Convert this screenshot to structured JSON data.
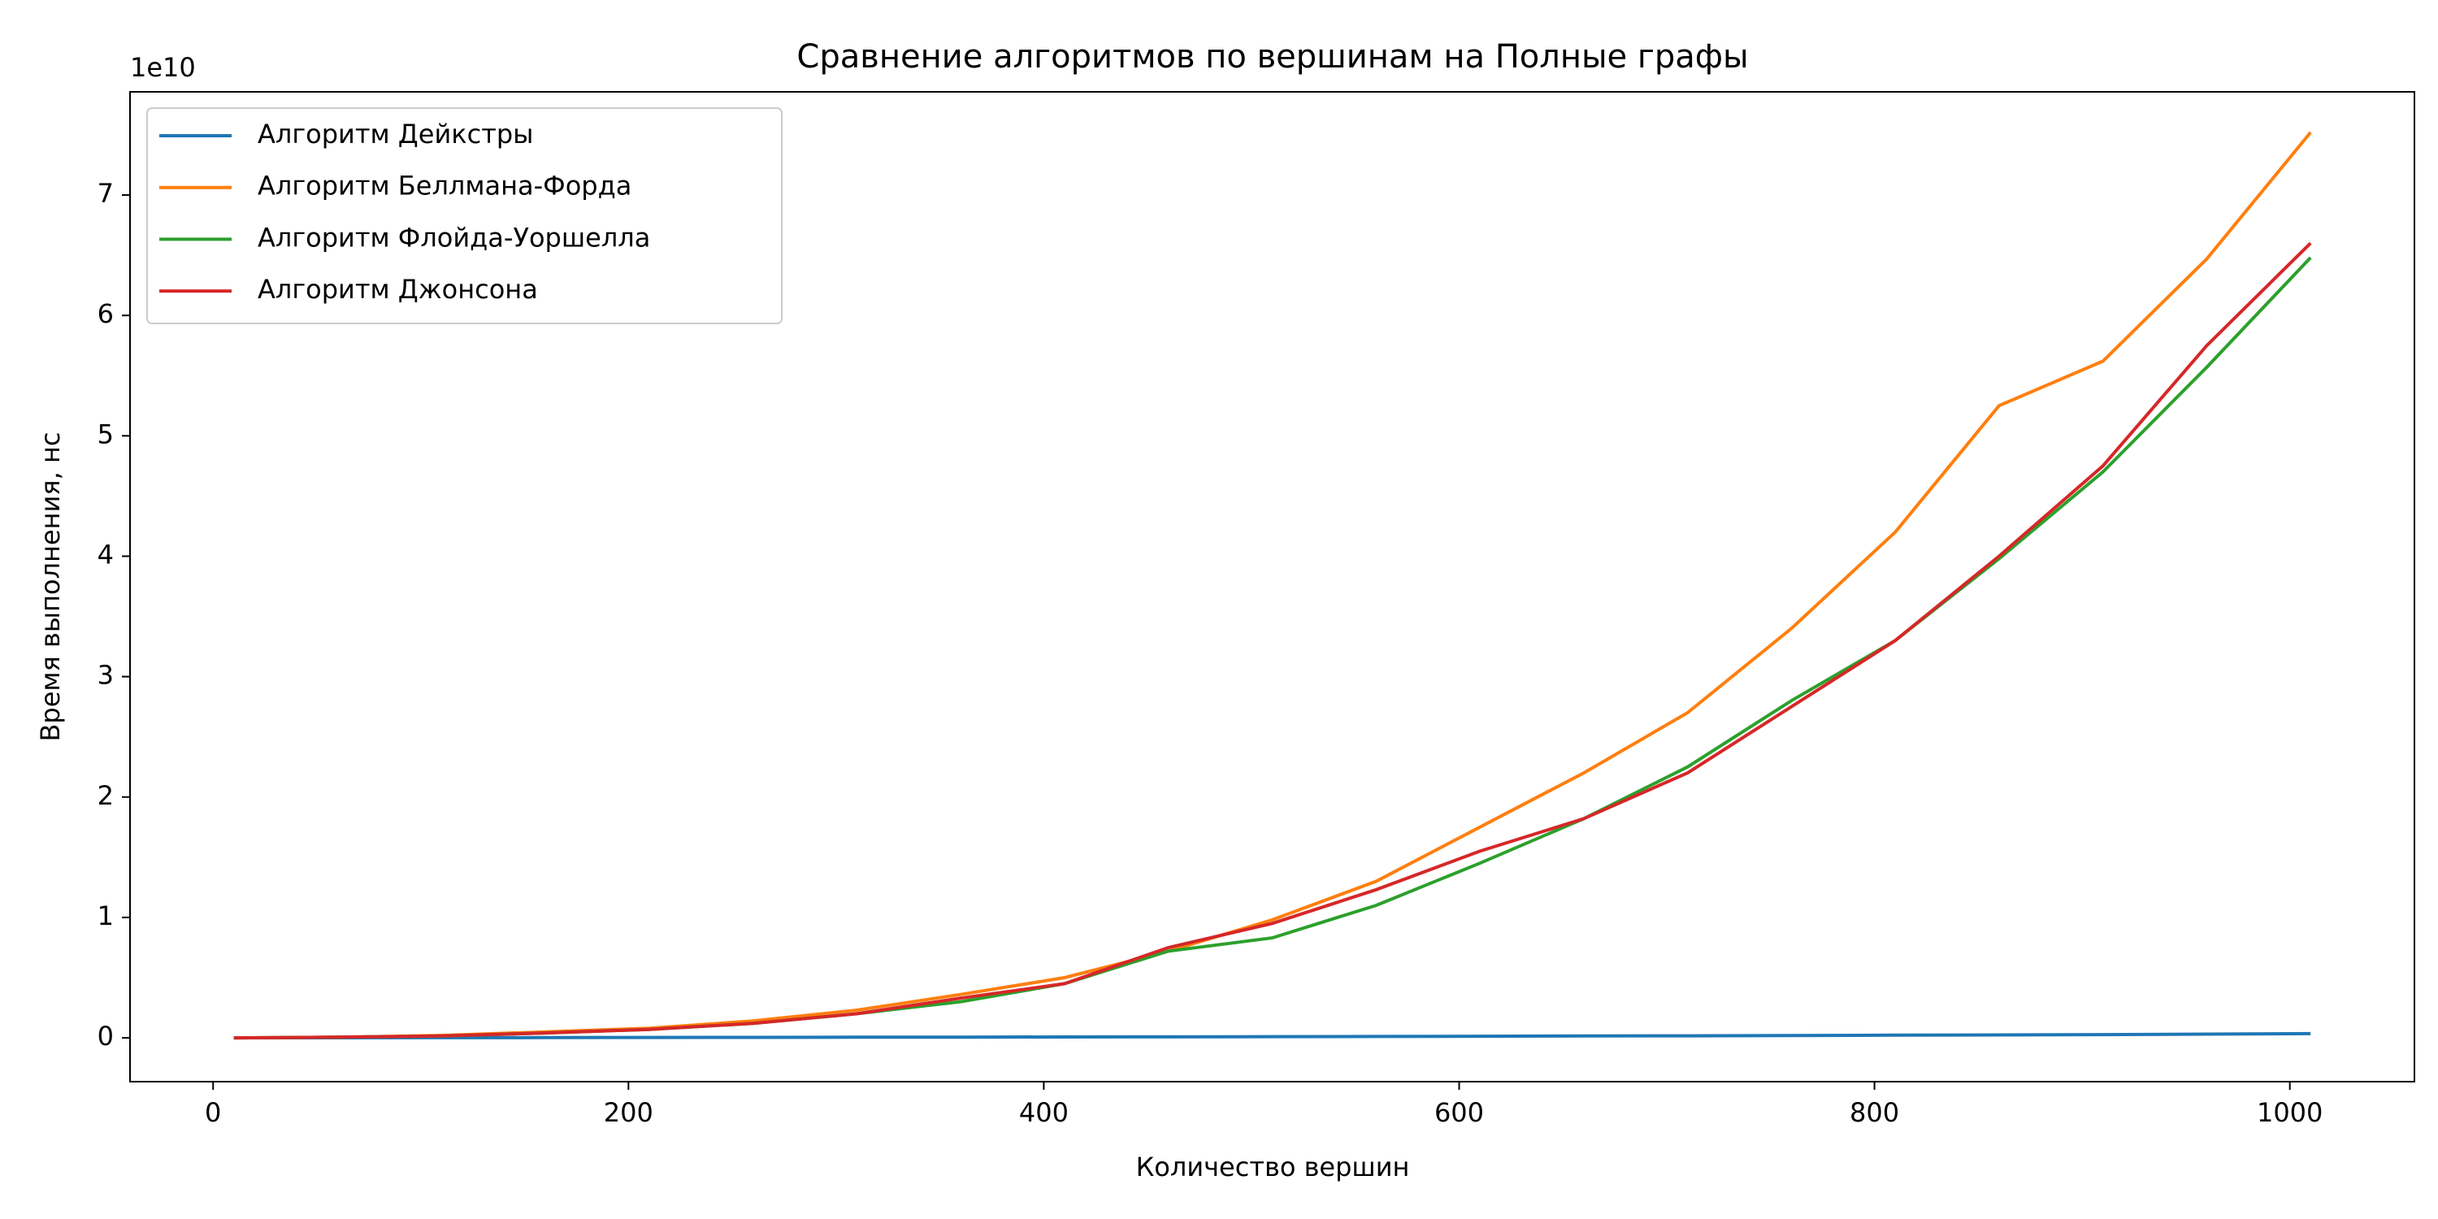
{
  "chart_data": {
    "type": "line",
    "title": "Сравнение алгоритмов по вершинам на Полные графы",
    "x_label": "Количество вершин",
    "y_label": "Время выполнения, нс",
    "offset_text": "1e10",
    "x": [
      10,
      60,
      110,
      160,
      210,
      260,
      310,
      360,
      410,
      460,
      510,
      560,
      610,
      660,
      710,
      760,
      810,
      860,
      910,
      960,
      1010
    ],
    "series": [
      {
        "name": "Алгоритм Дейкстры",
        "color": "#1f77b4",
        "values": [
          0,
          0.0005,
          0.001,
          0.002,
          0.003,
          0.004,
          0.005,
          0.006,
          0.007,
          0.008,
          0.01,
          0.011,
          0.013,
          0.015,
          0.017,
          0.019,
          0.022,
          0.024,
          0.027,
          0.031,
          0.035
        ]
      },
      {
        "name": "Алгоритм Беллмана-Форда",
        "color": "#ff7f0e",
        "values": [
          0,
          0.005,
          0.02,
          0.05,
          0.08,
          0.14,
          0.23,
          0.36,
          0.5,
          0.72,
          0.98,
          1.3,
          1.75,
          2.2,
          2.7,
          3.4,
          4.2,
          5.25,
          5.62,
          6.47,
          7.52
        ]
      },
      {
        "name": "Алгоритм Флойда-Уоршелла",
        "color": "#2ca02c",
        "values": [
          0,
          0.005,
          0.015,
          0.04,
          0.07,
          0.12,
          0.2,
          0.3,
          0.45,
          0.72,
          0.83,
          1.1,
          1.45,
          1.82,
          2.25,
          2.8,
          3.3,
          3.98,
          4.7,
          5.57,
          6.48
        ]
      },
      {
        "name": "Алгоритм Джонсона",
        "color": "#d62728",
        "values": [
          0,
          0.005,
          0.015,
          0.04,
          0.07,
          0.12,
          0.2,
          0.33,
          0.45,
          0.75,
          0.95,
          1.23,
          1.55,
          1.82,
          2.2,
          2.75,
          3.3,
          4.0,
          4.75,
          5.75,
          6.6
        ]
      }
    ],
    "xlim": [
      -40,
      1060
    ],
    "xticks": [
      0,
      200,
      400,
      600,
      800,
      1000
    ],
    "ylim": [
      -0.364,
      7.857
    ],
    "yticks": [
      0,
      1,
      2,
      3,
      4,
      5,
      6,
      7
    ],
    "grid": false,
    "legend": "upper left"
  }
}
